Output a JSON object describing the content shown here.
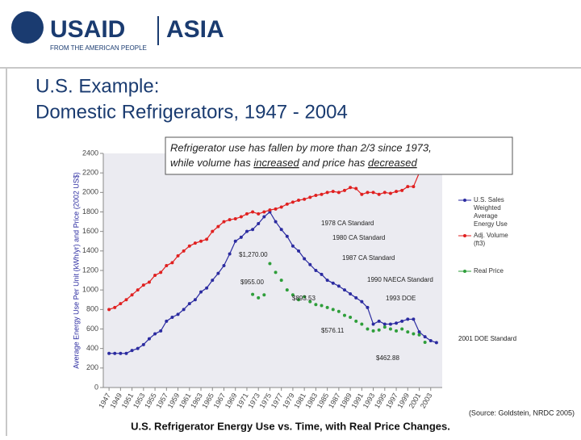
{
  "header": {
    "logo": "USAID",
    "logo_region": "ASIA",
    "tagline": "FROM THE AMERICAN PEOPLE"
  },
  "title_lines": [
    "U.S. Example:",
    "Domestic Refrigerators, 1947 - 2004"
  ],
  "callout": {
    "line1": "Refrigerator use has fallen by more than 2/3 since 1973,",
    "line2_parts": [
      "while volume has ",
      "increased",
      " and price has ",
      "decreased"
    ]
  },
  "source": "(Source: Goldstein, NRDC 2005)",
  "caption": "U.S. Refrigerator Energy Use vs. Time, with Real Price Changes.",
  "chart_data": {
    "type": "line",
    "y_label": "Average Energy Use Per Unit (kWh/yr) and Price (2002 US$)",
    "x": [
      1947,
      1948,
      1949,
      1950,
      1951,
      1952,
      1953,
      1954,
      1955,
      1956,
      1957,
      1958,
      1959,
      1960,
      1961,
      1962,
      1963,
      1964,
      1965,
      1966,
      1967,
      1968,
      1969,
      1970,
      1971,
      1972,
      1973,
      1974,
      1975,
      1976,
      1977,
      1978,
      1979,
      1980,
      1981,
      1982,
      1983,
      1984,
      1985,
      1986,
      1987,
      1988,
      1989,
      1990,
      1991,
      1992,
      1993,
      1994,
      1995,
      1996,
      1997,
      1998,
      1999,
      2000,
      2001,
      2002,
      2003,
      2004
    ],
    "xlim": [
      1946,
      2005
    ],
    "xticks": [
      1947,
      1949,
      1951,
      1953,
      1955,
      1957,
      1959,
      1961,
      1963,
      1965,
      1967,
      1969,
      1971,
      1973,
      1975,
      1977,
      1979,
      1981,
      1983,
      1985,
      1987,
      1989,
      1991,
      1993,
      1995,
      1997,
      1999,
      2001,
      2003
    ],
    "ylim": [
      0,
      2400
    ],
    "yticks": [
      0,
      200,
      400,
      600,
      800,
      1000,
      1200,
      1400,
      1600,
      1800,
      2000,
      2200,
      2400
    ],
    "series": [
      {
        "name": "U.S. Sales Weighted Average Energy Use",
        "color": "#2b2ba0",
        "values": [
          350,
          350,
          350,
          350,
          380,
          400,
          440,
          500,
          550,
          580,
          680,
          720,
          750,
          800,
          860,
          900,
          980,
          1020,
          1100,
          1170,
          1250,
          1370,
          1500,
          1540,
          1600,
          1620,
          1680,
          1750,
          1800,
          1700,
          1620,
          1550,
          1450,
          1400,
          1320,
          1260,
          1200,
          1160,
          1100,
          1070,
          1040,
          1000,
          960,
          920,
          880,
          820,
          650,
          680,
          650,
          650,
          660,
          680,
          700,
          700,
          570,
          520,
          480,
          460
        ]
      },
      {
        "name": "Adj. Volume (ft3)",
        "color": "#e02020",
        "values": [
          800,
          820,
          860,
          900,
          950,
          1000,
          1050,
          1080,
          1150,
          1180,
          1250,
          1280,
          1350,
          1400,
          1450,
          1480,
          1500,
          1520,
          1600,
          1650,
          1700,
          1720,
          1730,
          1750,
          1780,
          1800,
          1780,
          1800,
          1820,
          1830,
          1850,
          1880,
          1900,
          1920,
          1930,
          1950,
          1970,
          1980,
          2000,
          2010,
          2000,
          2020,
          2050,
          2040,
          1980,
          2000,
          2000,
          1980,
          2000,
          1990,
          2010,
          2020,
          2060,
          2060,
          2200,
          2350,
          null,
          null
        ]
      },
      {
        "name": "Real Price",
        "color": "#2e9e3a",
        "values": [
          null,
          null,
          null,
          null,
          null,
          null,
          null,
          null,
          null,
          null,
          null,
          null,
          null,
          null,
          null,
          null,
          null,
          null,
          null,
          null,
          null,
          null,
          null,
          null,
          null,
          955,
          920,
          950,
          1270,
          1180,
          1100,
          1000,
          950,
          900,
          930,
          880,
          850,
          840,
          820,
          800,
          780,
          740,
          720,
          680,
          650,
          600,
          580,
          590,
          620,
          600,
          580,
          600,
          570,
          550,
          540,
          463,
          null,
          null
        ]
      }
    ],
    "annotations": [
      "1978 CA Standard",
      "1980 CA Standard",
      "1987 CA Standard",
      "1990 NAECA Standard",
      "1993 DOE",
      "2001 DOE Standard",
      "$1,270.00",
      "$955.00",
      "$893.53",
      "$576.11",
      "$462.88"
    ]
  }
}
